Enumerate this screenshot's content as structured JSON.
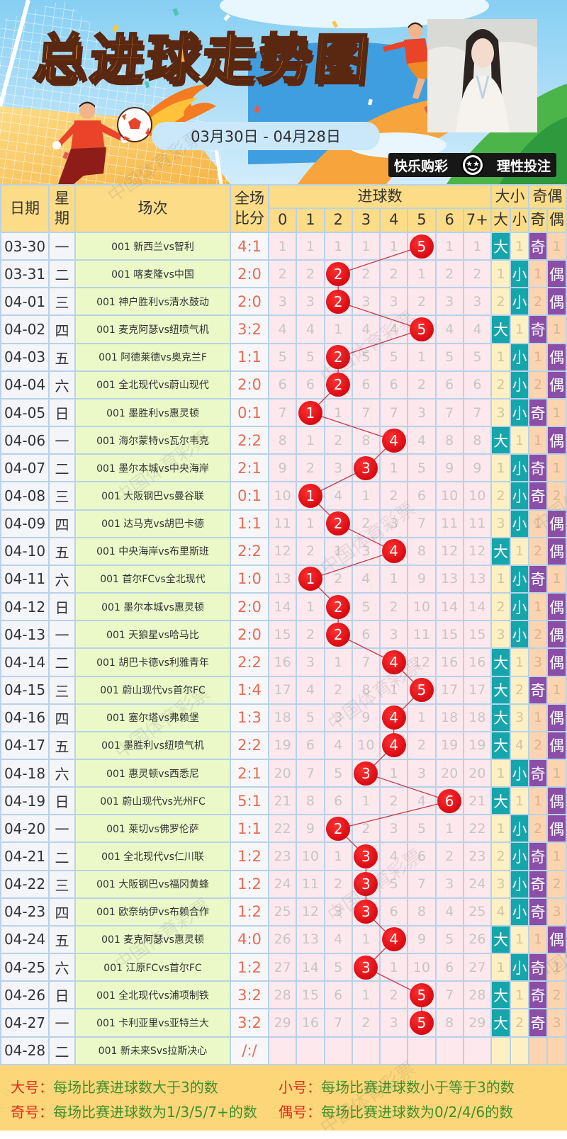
{
  "banner": {
    "title": "总进球走势图",
    "date_range": "03月30日 - 04月28日",
    "badge_left": "快乐购彩",
    "badge_right": "理性投注",
    "watermark": "中国体育彩票"
  },
  "colors": {
    "header_bg": "#fddc87",
    "grid_line": "#b8d2e8",
    "match_bg": "#ebf9c9",
    "number_bg": "#fde8ee",
    "ball_red": "#e0101a",
    "big_small_hit": "#14a6aa",
    "odd_even_hit": "#8a4ea7",
    "score_text": "#ea6b50",
    "legend_bg": "#fdd67a"
  },
  "table": {
    "headers": {
      "date": "日期",
      "weekday": "星期",
      "match": "场次",
      "score": "全场比分",
      "goals_group": "进球数",
      "goal_cols": [
        "0",
        "1",
        "2",
        "3",
        "4",
        "5",
        "6",
        "7+"
      ],
      "big_small_group": "大小",
      "big_small_cols": [
        "大",
        "小"
      ],
      "odd_even_group": "奇偶",
      "odd_even_cols": [
        "奇",
        "偶"
      ]
    },
    "rows": [
      {
        "date": "03-30",
        "weekday": "一",
        "match": "001 新西兰vs智利",
        "score": "4:1",
        "goals": [
          1,
          1,
          1,
          1,
          1,
          5,
          1,
          1
        ],
        "hit": 5,
        "big": "大",
        "small": "1",
        "odd": "奇",
        "even": "1"
      },
      {
        "date": "03-31",
        "weekday": "二",
        "match": "001 喀麦隆vs中国",
        "score": "2:0",
        "goals": [
          2,
          2,
          2,
          2,
          2,
          1,
          2,
          2
        ],
        "hit": 2,
        "big": "1",
        "small": "小",
        "odd": "1",
        "even": "偶"
      },
      {
        "date": "04-01",
        "weekday": "三",
        "match": "001 神户胜利vs清水鼓动",
        "score": "2:0",
        "goals": [
          3,
          3,
          2,
          3,
          3,
          2,
          3,
          3
        ],
        "hit": 2,
        "big": "2",
        "small": "小",
        "odd": "2",
        "even": "偶"
      },
      {
        "date": "04-02",
        "weekday": "四",
        "match": "001 麦克阿瑟vs纽喷气机",
        "score": "3:2",
        "goals": [
          4,
          4,
          1,
          4,
          4,
          5,
          4,
          4
        ],
        "hit": 5,
        "big": "大",
        "small": "1",
        "odd": "奇",
        "even": "1"
      },
      {
        "date": "04-03",
        "weekday": "五",
        "match": "001 阿德莱德vs奥克兰F",
        "score": "1:1",
        "goals": [
          5,
          5,
          2,
          5,
          5,
          1,
          5,
          5
        ],
        "hit": 2,
        "big": "1",
        "small": "小",
        "odd": "1",
        "even": "偶"
      },
      {
        "date": "04-04",
        "weekday": "六",
        "match": "001 全北现代vs蔚山现代",
        "score": "2:0",
        "goals": [
          6,
          6,
          2,
          6,
          6,
          2,
          6,
          6
        ],
        "hit": 2,
        "big": "2",
        "small": "小",
        "odd": "2",
        "even": "偶"
      },
      {
        "date": "04-05",
        "weekday": "日",
        "match": "001 墨胜利vs惠灵顿",
        "score": "0:1",
        "goals": [
          7,
          1,
          1,
          7,
          7,
          3,
          7,
          7
        ],
        "hit": 1,
        "big": "3",
        "small": "小",
        "odd": "奇",
        "even": "1"
      },
      {
        "date": "04-06",
        "weekday": "一",
        "match": "001 海尔蒙特vs瓦尔韦克",
        "score": "2:2",
        "goals": [
          8,
          1,
          2,
          8,
          4,
          4,
          8,
          8
        ],
        "hit": 4,
        "big": "大",
        "small": "1",
        "odd": "1",
        "even": "偶"
      },
      {
        "date": "04-07",
        "weekday": "二",
        "match": "001 墨尔本城vs中央海岸",
        "score": "2:1",
        "goals": [
          9,
          2,
          3,
          3,
          1,
          5,
          9,
          9
        ],
        "hit": 3,
        "big": "1",
        "small": "小",
        "odd": "奇",
        "even": "1"
      },
      {
        "date": "04-08",
        "weekday": "三",
        "match": "001 大阪钢巴vs曼谷联",
        "score": "0:1",
        "goals": [
          10,
          1,
          4,
          1,
          2,
          6,
          10,
          10
        ],
        "hit": 1,
        "big": "2",
        "small": "小",
        "odd": "奇",
        "even": "2"
      },
      {
        "date": "04-09",
        "weekday": "四",
        "match": "001 达马克vs胡巴卡德",
        "score": "1:1",
        "goals": [
          11,
          1,
          2,
          2,
          3,
          7,
          11,
          11
        ],
        "hit": 2,
        "big": "3",
        "small": "小",
        "odd": "1",
        "even": "偶"
      },
      {
        "date": "04-10",
        "weekday": "五",
        "match": "001 中央海岸vs布里斯班",
        "score": "2:2",
        "goals": [
          12,
          2,
          1,
          3,
          4,
          8,
          12,
          12
        ],
        "hit": 4,
        "big": "大",
        "small": "1",
        "odd": "2",
        "even": "偶"
      },
      {
        "date": "04-11",
        "weekday": "六",
        "match": "001 首尔FCvs全北现代",
        "score": "1:0",
        "goals": [
          13,
          1,
          2,
          4,
          1,
          9,
          13,
          13
        ],
        "hit": 1,
        "big": "1",
        "small": "小",
        "odd": "奇",
        "even": "1"
      },
      {
        "date": "04-12",
        "weekday": "日",
        "match": "001 墨尔本城vs惠灵顿",
        "score": "2:0",
        "goals": [
          14,
          1,
          2,
          5,
          2,
          10,
          14,
          14
        ],
        "hit": 2,
        "big": "2",
        "small": "小",
        "odd": "1",
        "even": "偶"
      },
      {
        "date": "04-13",
        "weekday": "一",
        "match": "001 天狼星vs哈马比",
        "score": "2:0",
        "goals": [
          15,
          2,
          2,
          6,
          3,
          11,
          15,
          15
        ],
        "hit": 2,
        "big": "3",
        "small": "小",
        "odd": "2",
        "even": "偶"
      },
      {
        "date": "04-14",
        "weekday": "二",
        "match": "001 胡巴卡德vs利雅青年",
        "score": "2:2",
        "goals": [
          16,
          3,
          1,
          7,
          4,
          12,
          16,
          16
        ],
        "hit": 4,
        "big": "大",
        "small": "1",
        "odd": "3",
        "even": "偶"
      },
      {
        "date": "04-15",
        "weekday": "三",
        "match": "001 蔚山现代vs首尔FC",
        "score": "1:4",
        "goals": [
          17,
          4,
          2,
          8,
          1,
          5,
          17,
          17
        ],
        "hit": 5,
        "big": "大",
        "small": "2",
        "odd": "奇",
        "even": "1"
      },
      {
        "date": "04-16",
        "weekday": "四",
        "match": "001 塞尔塔vs弗赖堡",
        "score": "1:3",
        "goals": [
          18,
          5,
          3,
          9,
          4,
          1,
          18,
          18
        ],
        "hit": 4,
        "big": "大",
        "small": "3",
        "odd": "1",
        "even": "偶"
      },
      {
        "date": "04-17",
        "weekday": "五",
        "match": "001 墨胜利vs纽喷气机",
        "score": "2:2",
        "goals": [
          19,
          6,
          4,
          10,
          4,
          2,
          19,
          19
        ],
        "hit": 4,
        "big": "大",
        "small": "4",
        "odd": "2",
        "even": "偶"
      },
      {
        "date": "04-18",
        "weekday": "六",
        "match": "001 惠灵顿vs西悉尼",
        "score": "2:1",
        "goals": [
          20,
          7,
          5,
          3,
          1,
          3,
          20,
          20
        ],
        "hit": 3,
        "big": "1",
        "small": "小",
        "odd": "奇",
        "even": "1"
      },
      {
        "date": "04-19",
        "weekday": "日",
        "match": "001 蔚山现代vs光州FC",
        "score": "5:1",
        "goals": [
          21,
          8,
          6,
          1,
          2,
          4,
          6,
          21
        ],
        "hit": 6,
        "big": "大",
        "small": "1",
        "odd": "1",
        "even": "偶"
      },
      {
        "date": "04-20",
        "weekday": "一",
        "match": "001 莱切vs佛罗伦萨",
        "score": "1:1",
        "goals": [
          22,
          9,
          2,
          2,
          3,
          5,
          1,
          22
        ],
        "hit": 2,
        "big": "1",
        "small": "小",
        "odd": "2",
        "even": "偶"
      },
      {
        "date": "04-21",
        "weekday": "二",
        "match": "001 全北现代vs仁川联",
        "score": "1:2",
        "goals": [
          23,
          10,
          1,
          3,
          4,
          6,
          2,
          23
        ],
        "hit": 3,
        "big": "2",
        "small": "小",
        "odd": "奇",
        "even": "1"
      },
      {
        "date": "04-22",
        "weekday": "三",
        "match": "001 大阪钢巴vs福冈黄蜂",
        "score": "1:2",
        "goals": [
          24,
          11,
          2,
          3,
          5,
          7,
          3,
          24
        ],
        "hit": 3,
        "big": "3",
        "small": "小",
        "odd": "奇",
        "even": "2"
      },
      {
        "date": "04-23",
        "weekday": "四",
        "match": "001 欧奈纳伊vs布赖合作",
        "score": "1:2",
        "goals": [
          25,
          12,
          3,
          3,
          6,
          8,
          4,
          25
        ],
        "hit": 3,
        "big": "4",
        "small": "小",
        "odd": "奇",
        "even": "3"
      },
      {
        "date": "04-24",
        "weekday": "五",
        "match": "001 麦克阿瑟vs惠灵顿",
        "score": "4:0",
        "goals": [
          26,
          13,
          4,
          1,
          4,
          9,
          5,
          26
        ],
        "hit": 4,
        "big": "大",
        "small": "1",
        "odd": "1",
        "even": "偶"
      },
      {
        "date": "04-25",
        "weekday": "六",
        "match": "001 江原FCvs首尔FC",
        "score": "1:2",
        "goals": [
          27,
          14,
          5,
          3,
          1,
          10,
          6,
          27
        ],
        "hit": 3,
        "big": "1",
        "small": "小",
        "odd": "奇",
        "even": "1"
      },
      {
        "date": "04-26",
        "weekday": "日",
        "match": "001 全北现代vs浦项制铁",
        "score": "3:2",
        "goals": [
          28,
          15,
          6,
          1,
          2,
          5,
          7,
          28
        ],
        "hit": 5,
        "big": "大",
        "small": "1",
        "odd": "奇",
        "even": "2"
      },
      {
        "date": "04-27",
        "weekday": "一",
        "match": "001 卡利亚里vs亚特兰大",
        "score": "3:2",
        "goals": [
          29,
          16,
          7,
          2,
          3,
          5,
          8,
          29
        ],
        "hit": 5,
        "big": "大",
        "small": "2",
        "odd": "奇",
        "even": "3"
      },
      {
        "date": "04-28",
        "weekday": "二",
        "match": "001 新未来Svs拉斯决心",
        "score": "/:/",
        "goals": null,
        "hit": null,
        "big": "",
        "small": "",
        "odd": "",
        "even": ""
      }
    ]
  },
  "legend": [
    {
      "label": "大号：",
      "text": "每场比赛进球数大于3的数"
    },
    {
      "label": "小号：",
      "text": "每场比赛进球数小于等于3的数"
    },
    {
      "label": "奇号：",
      "text": "每场比赛进球数为1/3/5/7+的数"
    },
    {
      "label": "偶号：",
      "text": "每场比赛进球数为0/2/4/6的数"
    }
  ],
  "chart_data": {
    "type": "line",
    "title": "总进球走势图",
    "subtitle": "03月30日 - 04月28日",
    "xlabel": "日期",
    "ylabel": "进球数",
    "y_categories": [
      "0",
      "1",
      "2",
      "3",
      "4",
      "5",
      "6",
      "7+"
    ],
    "x": [
      "03-30",
      "03-31",
      "04-01",
      "04-02",
      "04-03",
      "04-04",
      "04-05",
      "04-06",
      "04-07",
      "04-08",
      "04-09",
      "04-10",
      "04-11",
      "04-12",
      "04-13",
      "04-14",
      "04-15",
      "04-16",
      "04-17",
      "04-18",
      "04-19",
      "04-20",
      "04-21",
      "04-22",
      "04-23",
      "04-24",
      "04-25",
      "04-26",
      "04-27",
      "04-28"
    ],
    "series": [
      {
        "name": "总进球数",
        "values": [
          5,
          2,
          2,
          5,
          2,
          2,
          1,
          4,
          3,
          1,
          2,
          4,
          1,
          2,
          2,
          4,
          5,
          4,
          4,
          3,
          6,
          2,
          3,
          3,
          3,
          4,
          3,
          5,
          5,
          null
        ]
      }
    ],
    "scores": [
      "4:1",
      "2:0",
      "2:0",
      "3:2",
      "1:1",
      "2:0",
      "0:1",
      "2:2",
      "2:1",
      "0:1",
      "1:1",
      "2:2",
      "1:0",
      "2:0",
      "2:0",
      "2:2",
      "1:4",
      "1:3",
      "2:2",
      "2:1",
      "5:1",
      "1:1",
      "1:2",
      "1:2",
      "1:2",
      "4:0",
      "1:2",
      "3:2",
      "3:2",
      "/:/"
    ],
    "grid": true,
    "legend_position": "bottom"
  }
}
